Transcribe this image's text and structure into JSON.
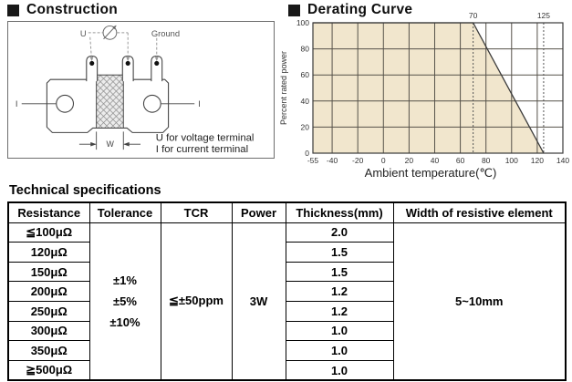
{
  "construction": {
    "title": "Construction",
    "labels": {
      "u": "U",
      "ground": "Ground",
      "i_left": "I",
      "i_right": "I",
      "w": "W"
    },
    "note_line1": "U for voltage terminal",
    "note_line2": "I for current terminal"
  },
  "chart_data": {
    "type": "area",
    "title": "Derating Curve",
    "xlabel": "Ambient temperature(℃)",
    "ylabel": "Percent rated power",
    "xlim": [
      -55,
      140
    ],
    "ylim": [
      0,
      100
    ],
    "x_ticks": [
      -55,
      -40,
      -20,
      0,
      20,
      40,
      60,
      80,
      100,
      120,
      140
    ],
    "y_ticks": [
      0,
      20,
      40,
      60,
      80,
      100
    ],
    "series": [
      {
        "name": "derating",
        "points": [
          [
            -55,
            100
          ],
          [
            70,
            100
          ],
          [
            125,
            0
          ]
        ]
      }
    ],
    "reference_lines": [
      {
        "x": 70,
        "label": "70"
      },
      {
        "x": 125,
        "label": "125"
      }
    ],
    "grid": true,
    "legend": false,
    "area_fill": "#f1e6cd",
    "grid_color": "#56524a",
    "line_color": "#3a3a3a",
    "ref_line_color": "#555555"
  },
  "specs": {
    "title": "Technical specifications",
    "columns": [
      "Resistance",
      "Tolerance",
      "TCR",
      "Power",
      "Thickness(mm)",
      "Width of resistive element"
    ],
    "resistance": [
      "≦100μΩ",
      "120μΩ",
      "150μΩ",
      "200μΩ",
      "250μΩ",
      "300μΩ",
      "350μΩ",
      "≧500μΩ"
    ],
    "thickness": [
      "2.0",
      "1.5",
      "1.5",
      "1.2",
      "1.2",
      "1.0",
      "1.0",
      "1.0"
    ],
    "tolerance_lines": [
      "±1%",
      "±5%",
      "±10%"
    ],
    "tcr": "≦±50ppm",
    "power": "3W",
    "width_of_resistive_element": "5~10mm"
  }
}
